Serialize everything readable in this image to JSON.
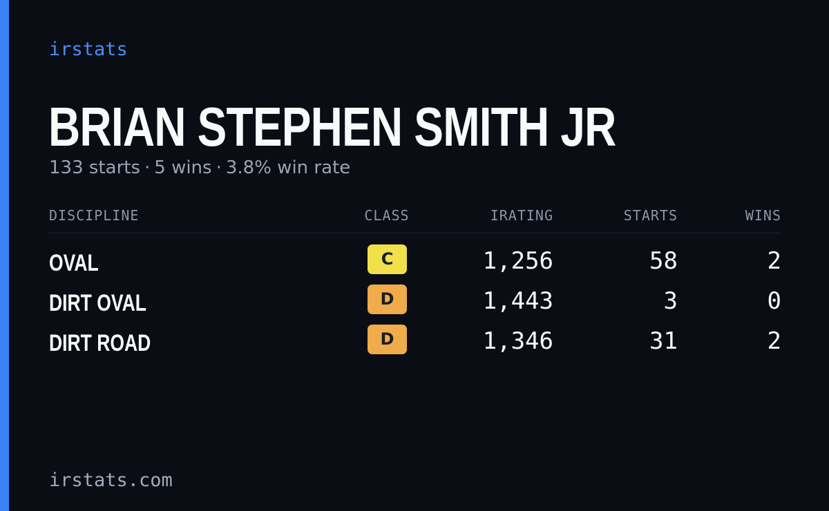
{
  "brand": "irstats",
  "driver": {
    "name": "BRIAN STEPHEN SMITH JR",
    "starts_text": "133 starts",
    "wins_text": "5 wins",
    "win_rate_text": "3.8% win rate",
    "separator": "·"
  },
  "table": {
    "headers": {
      "discipline": "DISCIPLINE",
      "class": "CLASS",
      "irating": "IRATING",
      "starts": "STARTS",
      "wins": "WINS"
    },
    "rows": [
      {
        "discipline": "OVAL",
        "class": "C",
        "class_color": "#f0e04a",
        "irating": "1,256",
        "starts": "58",
        "wins": "2"
      },
      {
        "discipline": "DIRT OVAL",
        "class": "D",
        "class_color": "#f0ab4a",
        "irating": "1,443",
        "starts": "3",
        "wins": "0"
      },
      {
        "discipline": "DIRT ROAD",
        "class": "D",
        "class_color": "#f0ab4a",
        "irating": "1,346",
        "starts": "31",
        "wins": "2"
      }
    ]
  },
  "footer": {
    "url": "irstats.com"
  },
  "colors": {
    "background": "#0a0d14",
    "accent": "#3b82f6"
  }
}
